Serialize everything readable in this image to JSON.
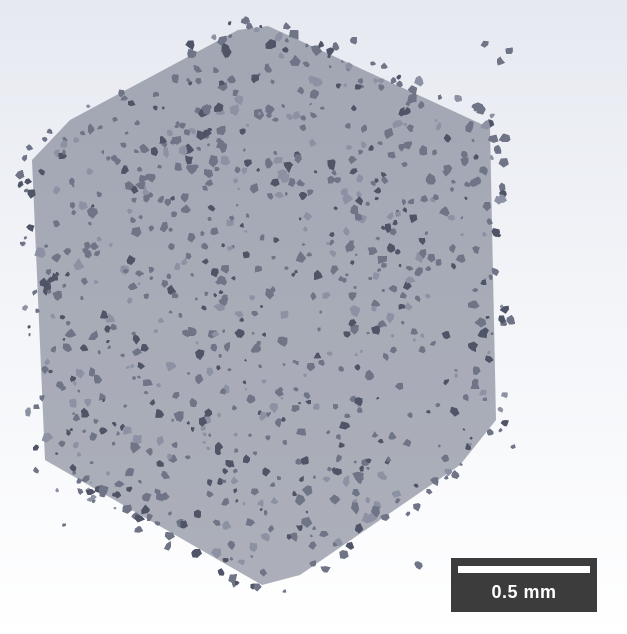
{
  "image": {
    "subject": "porous-particle-aggregate",
    "background_top_color": "#e6e9f0",
    "background_bottom_color": "#ffffff",
    "particle_base_color": "#6f7587",
    "particle_shadow_color": "#4f5466",
    "particle_highlight_color": "#8c92a3"
  },
  "scale_bar": {
    "label": "0.5 mm",
    "background_color": "#3c3c3c",
    "bar_color": "#ffffff"
  }
}
